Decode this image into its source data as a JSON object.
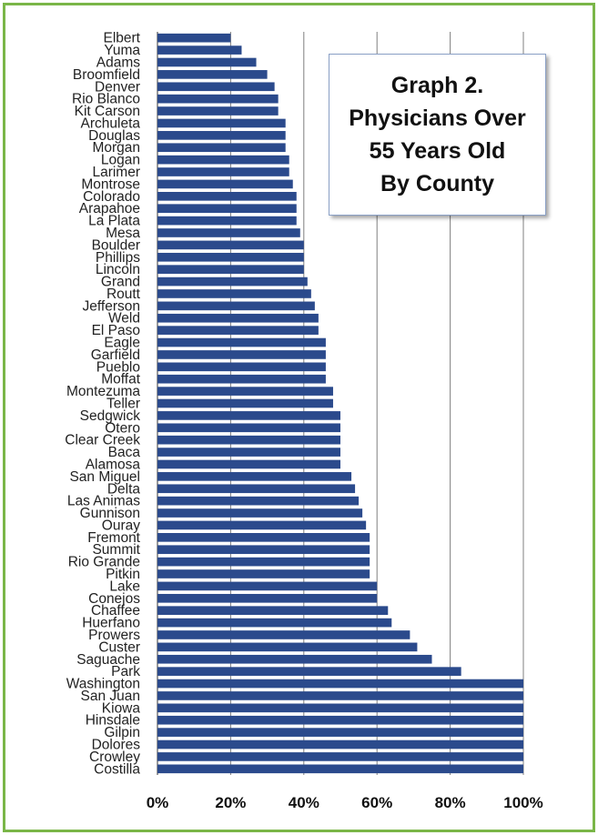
{
  "title_lines": [
    "Graph 2.",
    "Physicians Over",
    "55 Years Old",
    "By County"
  ],
  "colors": {
    "bar": "#2b4a8c",
    "border": "#7ab648",
    "grid": "#7f7f7f"
  },
  "chart_data": {
    "type": "bar",
    "orientation": "horizontal",
    "title": "Graph 2. Physicians Over 55 Years Old By County",
    "xlim": [
      0,
      100
    ],
    "x_ticks": [
      "0%",
      "20%",
      "40%",
      "60%",
      "80%",
      "100%"
    ],
    "gridlines": true,
    "categories": [
      "Elbert",
      "Yuma",
      "Adams",
      "Broomfield",
      "Denver",
      "Rio Blanco",
      "Kit Carson",
      "Archuleta",
      "Douglas",
      "Morgan",
      "Logan",
      "Larimer",
      "Montrose",
      "Colorado",
      "Arapahoe",
      "La Plata",
      "Mesa",
      "Boulder",
      "Phillips",
      "Lincoln",
      "Grand",
      "Routt",
      "Jefferson",
      "Weld",
      "El Paso",
      "Eagle",
      "Garfield",
      "Pueblo",
      "Moffat",
      "Montezuma",
      "Teller",
      "Sedgwick",
      "Otero",
      "Clear Creek",
      "Baca",
      "Alamosa",
      "San Miguel",
      "Delta",
      "Las Animas",
      "Gunnison",
      "Ouray",
      "Fremont",
      "Summit",
      "Rio Grande",
      "Pitkin",
      "Lake",
      "Conejos",
      "Chaffee",
      "Huerfano",
      "Prowers",
      "Custer",
      "Saguache",
      "Park",
      "Washington",
      "San Juan",
      "Kiowa",
      "Hinsdale",
      "Gilpin",
      "Dolores",
      "Crowley",
      "Costilla"
    ],
    "values": [
      20,
      23,
      27,
      30,
      32,
      33,
      33,
      35,
      35,
      35,
      36,
      36,
      37,
      38,
      38,
      38,
      39,
      40,
      40,
      40,
      41,
      42,
      43,
      44,
      44,
      46,
      46,
      46,
      46,
      48,
      48,
      50,
      50,
      50,
      50,
      50,
      53,
      54,
      55,
      56,
      57,
      58,
      58,
      58,
      58,
      60,
      60,
      63,
      64,
      69,
      71,
      75,
      83,
      100,
      100,
      100,
      100,
      100,
      100,
      100,
      100
    ]
  }
}
